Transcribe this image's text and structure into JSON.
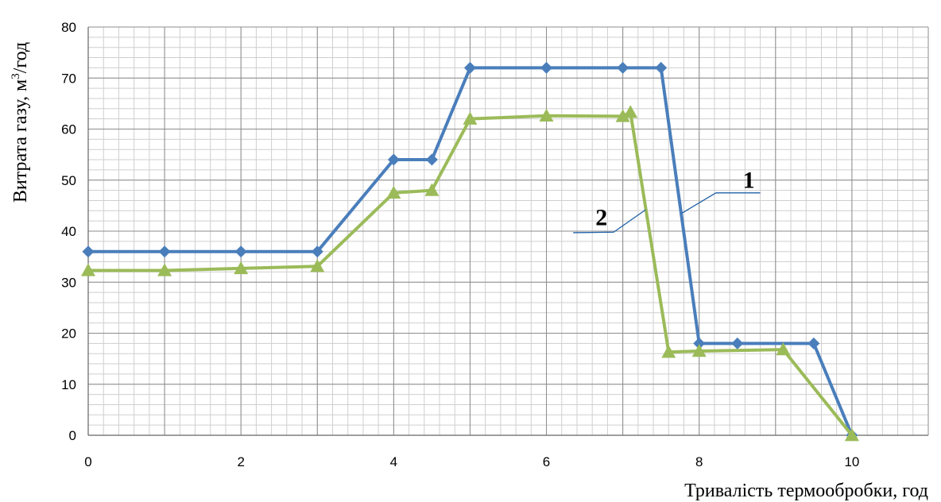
{
  "chart_data": {
    "type": "line",
    "title": "",
    "xlabel": "Тривалість термообробки, год",
    "ylabel_main": "Витрата газу, м",
    "ylabel_sup": "3",
    "ylabel_tail": "/год",
    "xlim": [
      0,
      11
    ],
    "ylim": [
      0,
      80
    ],
    "x_ticks": [
      0,
      2,
      4,
      6,
      8,
      10
    ],
    "y_ticks": [
      0,
      10,
      20,
      30,
      40,
      50,
      60,
      70,
      80
    ],
    "grid": true,
    "series": [
      {
        "label": "1",
        "color": "#4a7ebb",
        "marker": "diamond",
        "points": [
          [
            0,
            36
          ],
          [
            1,
            36
          ],
          [
            2,
            36
          ],
          [
            3,
            36
          ],
          [
            4,
            54
          ],
          [
            4.5,
            54
          ],
          [
            5,
            72
          ],
          [
            6,
            72
          ],
          [
            7,
            72
          ],
          [
            7.5,
            72
          ],
          [
            8,
            18
          ],
          [
            8.5,
            18
          ],
          [
            9.5,
            18
          ],
          [
            10,
            0
          ]
        ]
      },
      {
        "label": "2",
        "color": "#9bbb59",
        "marker": "triangle",
        "points": [
          [
            0,
            32.3
          ],
          [
            1,
            32.3
          ],
          [
            2,
            32.7
          ],
          [
            3,
            33.1
          ],
          [
            4,
            47.5
          ],
          [
            4.5,
            48
          ],
          [
            5,
            62
          ],
          [
            6,
            62.6
          ],
          [
            7,
            62.5
          ],
          [
            7.1,
            63.3
          ],
          [
            7.6,
            16.3
          ],
          [
            8,
            16.5
          ],
          [
            9.1,
            16.8
          ],
          [
            10,
            0
          ]
        ]
      }
    ]
  }
}
